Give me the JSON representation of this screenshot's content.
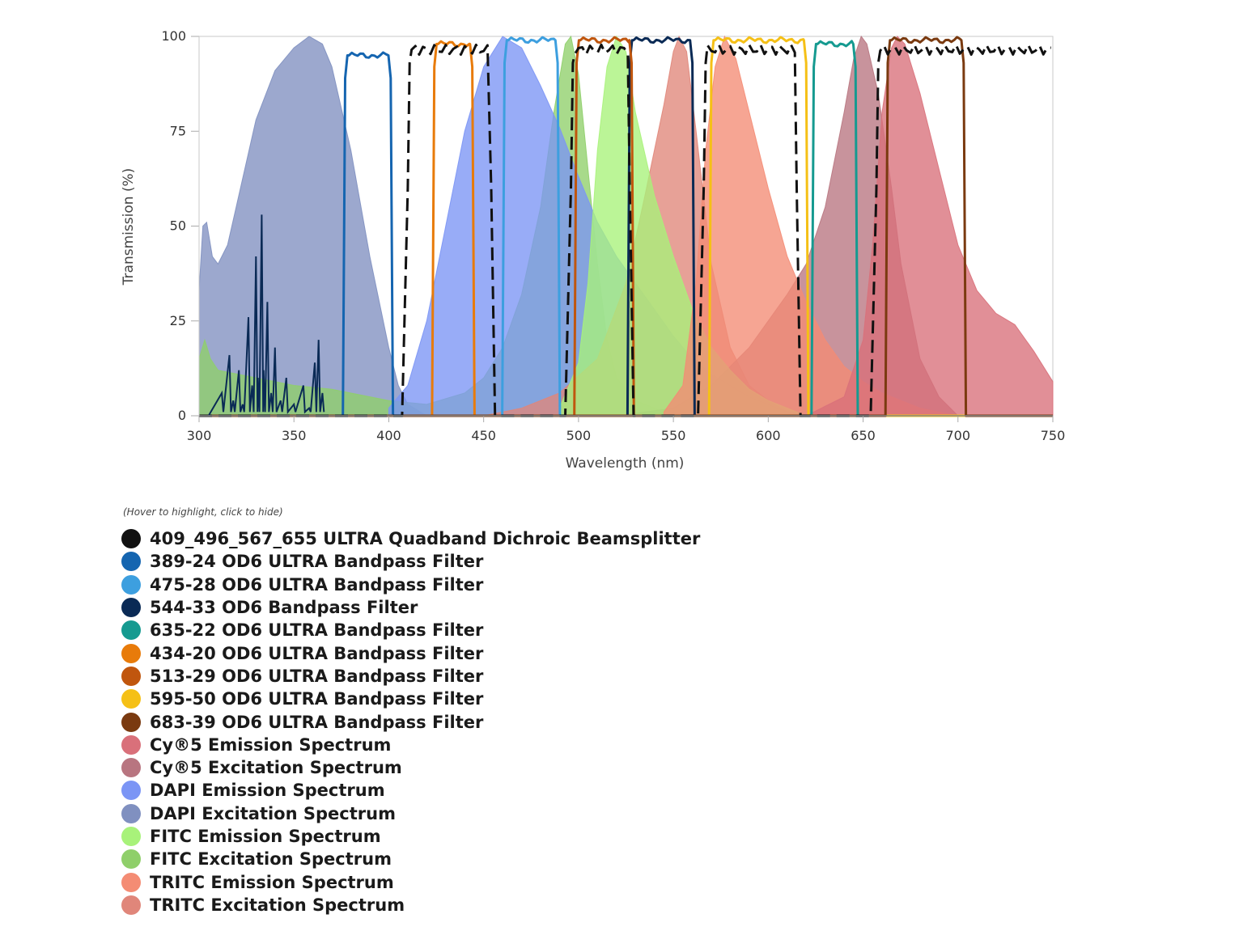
{
  "chart_data": {
    "type": "area",
    "title": "",
    "xlabel": "Wavelength (nm)",
    "ylabel": "Transmission (%)",
    "xlim": [
      300,
      750
    ],
    "ylim": [
      0,
      100
    ],
    "xticks": [
      300,
      350,
      400,
      450,
      500,
      550,
      600,
      650,
      700,
      750
    ],
    "yticks": [
      0,
      25,
      50,
      75,
      100
    ],
    "legend_hint": "(Hover to highlight, click to hide)",
    "filters": [
      {
        "name": "389-24 OD6 ULTRA Bandpass Filter",
        "color": "#1565b0",
        "low": 377,
        "high": 401,
        "peak": 95
      },
      {
        "name": "475-28 OD6 ULTRA Bandpass Filter",
        "color": "#3d9fdf",
        "low": 461,
        "high": 489,
        "peak": 99
      },
      {
        "name": "544-33 OD6 Bandpass Filter",
        "color": "#0a2a55",
        "low": 527,
        "high": 560,
        "peak": 99
      },
      {
        "name": "635-22 OD6 ULTRA Bandpass Filter",
        "color": "#159a90",
        "low": 624,
        "high": 646,
        "peak": 98
      },
      {
        "name": "434-20 OD6 ULTRA Bandpass Filter",
        "color": "#e87b0a",
        "low": 424,
        "high": 444,
        "peak": 98
      },
      {
        "name": "513-29 OD6 ULTRA Bandpass Filter",
        "color": "#c0560e",
        "low": 499,
        "high": 528,
        "peak": 99
      },
      {
        "name": "595-50 OD6 ULTRA Bandpass Filter",
        "color": "#f5c016",
        "low": 570,
        "high": 620,
        "peak": 99
      },
      {
        "name": "683-39 OD6 ULTRA Bandpass Filter",
        "color": "#7a3a10",
        "low": 663,
        "high": 703,
        "peak": 99
      }
    ],
    "dichroic": {
      "name": "409_496_567_655 ULTRA Quadband Dichroic Beamsplitter",
      "color": "#111111",
      "pass_bands": [
        [
          411,
          453
        ],
        [
          497,
          526
        ],
        [
          567,
          614
        ],
        [
          658,
          750
        ]
      ],
      "peak": 97
    },
    "spectra": [
      {
        "name": "Cy®5 Emission Spectrum",
        "color": "#d9707a",
        "points": [
          [
            620,
            0
          ],
          [
            640,
            5
          ],
          [
            650,
            20
          ],
          [
            655,
            45
          ],
          [
            660,
            80
          ],
          [
            665,
            97
          ],
          [
            668,
            100
          ],
          [
            672,
            98
          ],
          [
            680,
            85
          ],
          [
            690,
            65
          ],
          [
            700,
            45
          ],
          [
            710,
            33
          ],
          [
            720,
            27
          ],
          [
            730,
            24
          ],
          [
            740,
            17
          ],
          [
            750,
            9
          ]
        ]
      },
      {
        "name": "Cy®5 Excitation Spectrum",
        "color": "#b87580",
        "points": [
          [
            520,
            0
          ],
          [
            550,
            2
          ],
          [
            570,
            8
          ],
          [
            590,
            18
          ],
          [
            600,
            25
          ],
          [
            610,
            32
          ],
          [
            620,
            40
          ],
          [
            630,
            55
          ],
          [
            640,
            80
          ],
          [
            645,
            94
          ],
          [
            649,
            100
          ],
          [
            652,
            98
          ],
          [
            658,
            85
          ],
          [
            665,
            60
          ],
          [
            670,
            40
          ],
          [
            680,
            15
          ],
          [
            690,
            5
          ],
          [
            700,
            0
          ]
        ]
      },
      {
        "name": "DAPI Emission Spectrum",
        "color": "#7b95f5",
        "points": [
          [
            400,
            2
          ],
          [
            410,
            8
          ],
          [
            420,
            25
          ],
          [
            430,
            50
          ],
          [
            440,
            75
          ],
          [
            450,
            92
          ],
          [
            460,
            100
          ],
          [
            470,
            97
          ],
          [
            480,
            87
          ],
          [
            490,
            76
          ],
          [
            500,
            63
          ],
          [
            510,
            51
          ],
          [
            520,
            42
          ],
          [
            530,
            35
          ],
          [
            540,
            28
          ],
          [
            550,
            21
          ],
          [
            560,
            15
          ],
          [
            570,
            11
          ],
          [
            580,
            8
          ],
          [
            590,
            5
          ],
          [
            600,
            3
          ],
          [
            610,
            1
          ],
          [
            620,
            0
          ]
        ]
      },
      {
        "name": "DAPI Excitation Spectrum",
        "color": "#8090c0",
        "points": [
          [
            300,
            33
          ],
          [
            302,
            50
          ],
          [
            304,
            51
          ],
          [
            307,
            42
          ],
          [
            310,
            40
          ],
          [
            315,
            45
          ],
          [
            320,
            56
          ],
          [
            330,
            78
          ],
          [
            340,
            91
          ],
          [
            350,
            97
          ],
          [
            358,
            100
          ],
          [
            365,
            98
          ],
          [
            370,
            92
          ],
          [
            380,
            70
          ],
          [
            390,
            42
          ],
          [
            400,
            18
          ],
          [
            405,
            8
          ],
          [
            410,
            3
          ],
          [
            420,
            0
          ]
        ]
      },
      {
        "name": "FITC Emission Spectrum",
        "color": "#a8f27a",
        "points": [
          [
            490,
            2
          ],
          [
            500,
            14
          ],
          [
            505,
            35
          ],
          [
            510,
            70
          ],
          [
            515,
            92
          ],
          [
            520,
            100
          ],
          [
            525,
            96
          ],
          [
            530,
            80
          ],
          [
            540,
            58
          ],
          [
            550,
            42
          ],
          [
            560,
            28
          ],
          [
            570,
            18
          ],
          [
            580,
            12
          ],
          [
            590,
            7
          ],
          [
            600,
            4
          ],
          [
            610,
            2
          ],
          [
            620,
            0
          ]
        ]
      },
      {
        "name": "FITC Excitation Spectrum",
        "color": "#8fcf6a",
        "points": [
          [
            300,
            15
          ],
          [
            303,
            20
          ],
          [
            306,
            15
          ],
          [
            310,
            12
          ],
          [
            330,
            10
          ],
          [
            350,
            8
          ],
          [
            370,
            7
          ],
          [
            400,
            4
          ],
          [
            420,
            3
          ],
          [
            440,
            6
          ],
          [
            450,
            10
          ],
          [
            460,
            18
          ],
          [
            470,
            32
          ],
          [
            480,
            55
          ],
          [
            487,
            80
          ],
          [
            493,
            98
          ],
          [
            496,
            100
          ],
          [
            500,
            90
          ],
          [
            505,
            65
          ],
          [
            510,
            40
          ],
          [
            515,
            20
          ],
          [
            520,
            10
          ],
          [
            530,
            4
          ],
          [
            540,
            2
          ],
          [
            550,
            0
          ]
        ]
      },
      {
        "name": "TRITC Emission Spectrum",
        "color": "#f48c74",
        "points": [
          [
            545,
            1
          ],
          [
            555,
            8
          ],
          [
            562,
            35
          ],
          [
            567,
            70
          ],
          [
            572,
            92
          ],
          [
            577,
            100
          ],
          [
            583,
            94
          ],
          [
            590,
            80
          ],
          [
            600,
            60
          ],
          [
            610,
            42
          ],
          [
            620,
            30
          ],
          [
            630,
            20
          ],
          [
            640,
            13
          ],
          [
            650,
            9
          ],
          [
            660,
            6
          ],
          [
            670,
            4
          ],
          [
            680,
            2
          ],
          [
            700,
            0
          ]
        ]
      },
      {
        "name": "TRITC Excitation Spectrum",
        "color": "#e0867a",
        "points": [
          [
            450,
            0
          ],
          [
            470,
            2
          ],
          [
            490,
            6
          ],
          [
            510,
            15
          ],
          [
            525,
            35
          ],
          [
            535,
            58
          ],
          [
            545,
            82
          ],
          [
            550,
            96
          ],
          [
            553,
            100
          ],
          [
            557,
            96
          ],
          [
            562,
            75
          ],
          [
            570,
            40
          ],
          [
            580,
            18
          ],
          [
            590,
            8
          ],
          [
            600,
            4
          ],
          [
            610,
            1
          ],
          [
            620,
            0
          ]
        ]
      }
    ]
  },
  "legend": {
    "hint": "(Hover to highlight, click to hide)",
    "items": [
      {
        "label": "409_496_567_655 ULTRA Quadband Dichroic Beamsplitter",
        "color": "#111111"
      },
      {
        "label": "389-24 OD6 ULTRA Bandpass Filter",
        "color": "#1565b0"
      },
      {
        "label": "475-28 OD6 ULTRA Bandpass Filter",
        "color": "#3d9fdf"
      },
      {
        "label": "544-33 OD6 Bandpass Filter",
        "color": "#0a2a55"
      },
      {
        "label": "635-22 OD6 ULTRA Bandpass Filter",
        "color": "#159a90"
      },
      {
        "label": "434-20 OD6 ULTRA Bandpass Filter",
        "color": "#e87b0a"
      },
      {
        "label": "513-29 OD6 ULTRA Bandpass Filter",
        "color": "#c0560e"
      },
      {
        "label": "595-50 OD6 ULTRA Bandpass Filter",
        "color": "#f5c016"
      },
      {
        "label": "683-39 OD6 ULTRA Bandpass Filter",
        "color": "#7a3a10"
      },
      {
        "label": "Cy®5 Emission Spectrum",
        "color": "#d9707a"
      },
      {
        "label": "Cy®5 Excitation Spectrum",
        "color": "#b87580"
      },
      {
        "label": "DAPI Emission Spectrum",
        "color": "#7b95f5"
      },
      {
        "label": "DAPI Excitation Spectrum",
        "color": "#8090c0"
      },
      {
        "label": "FITC Emission Spectrum",
        "color": "#a8f27a"
      },
      {
        "label": "FITC Excitation Spectrum",
        "color": "#8fcf6a"
      },
      {
        "label": "TRITC Emission Spectrum",
        "color": "#f48c74"
      },
      {
        "label": "TRITC Excitation Spectrum",
        "color": "#e0867a"
      }
    ]
  }
}
